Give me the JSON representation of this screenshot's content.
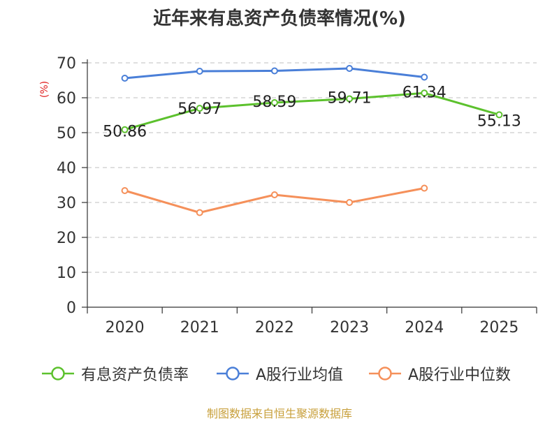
{
  "title": "近年来有息资产负债率情况(%)",
  "source": "制图数据来自恒生聚源数据库",
  "chart_data": {
    "type": "line",
    "title": "近年来有息资产负债率情况(%)",
    "xlabel": "",
    "ylabel": "(%)",
    "categories": [
      "2020",
      "2021",
      "2022",
      "2023",
      "2024",
      "2025"
    ],
    "ylim": [
      0,
      70
    ],
    "yticks": [
      0,
      10,
      20,
      30,
      40,
      50,
      60,
      70
    ],
    "grid": true,
    "legend_position": "bottom",
    "series": [
      {
        "name": "有息资产负债率",
        "color": "#5cc12d",
        "values": [
          50.86,
          56.97,
          58.59,
          59.71,
          61.34,
          55.13
        ],
        "labels": [
          "50.86",
          "56.97",
          "58.59",
          "59.71",
          "61.34",
          "55.13"
        ]
      },
      {
        "name": "A股行业均值",
        "color": "#4a7fd8",
        "values": [
          65.6,
          67.6,
          67.7,
          68.4,
          65.9,
          null
        ]
      },
      {
        "name": "A股行业中位数",
        "color": "#f5905a",
        "values": [
          33.4,
          27.1,
          32.2,
          30.0,
          34.1,
          null
        ]
      }
    ]
  }
}
